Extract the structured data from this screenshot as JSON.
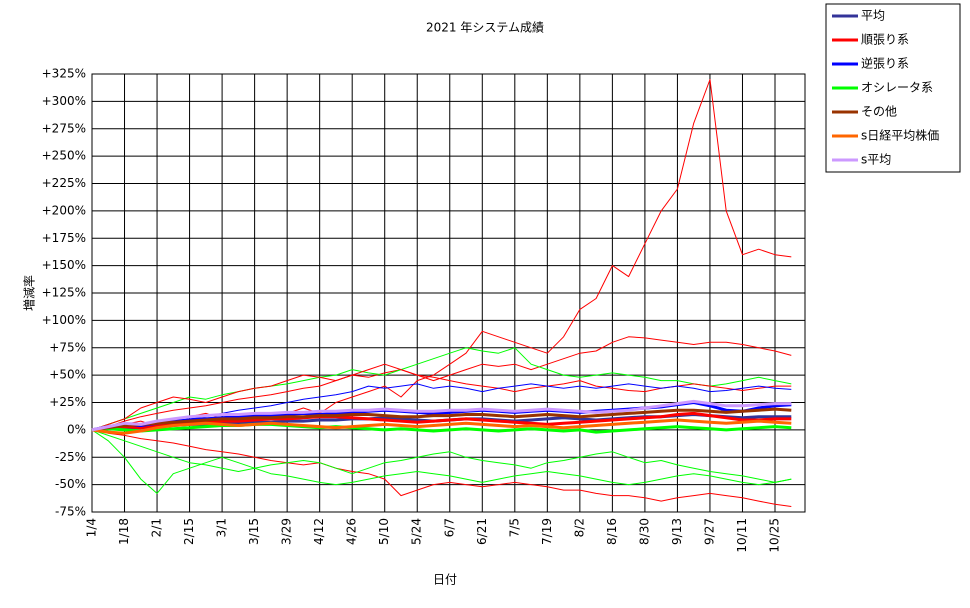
{
  "chart_data": {
    "type": "line",
    "title": "2021 年システム成績",
    "y_label": "増減率",
    "x_label": "日付",
    "grid": true,
    "legend": "right",
    "categories": [
      "1/4",
      null,
      "1/18",
      null,
      "2/1",
      null,
      "2/15",
      null,
      "3/1",
      null,
      "3/15",
      null,
      "3/29",
      null,
      "4/12",
      null,
      "4/26",
      null,
      "5/10",
      null,
      "5/24",
      null,
      "6/7",
      null,
      "6/21",
      null,
      "7/5",
      null,
      "7/19",
      null,
      "8/2",
      null,
      "8/16",
      null,
      "8/30",
      null,
      "9/13",
      null,
      "9/27",
      null,
      "10/11",
      null,
      "10/25",
      null
    ],
    "ylim": [
      -75,
      325
    ],
    "yticks": [
      {
        "value": -75,
        "label": "-75%"
      },
      {
        "value": -50,
        "label": "-50%"
      },
      {
        "value": -25,
        "label": "-25%"
      },
      {
        "value": 0,
        "label": "0%"
      },
      {
        "value": 25,
        "label": "+25%"
      },
      {
        "value": 50,
        "label": "+50%"
      },
      {
        "value": 75,
        "label": "+75%"
      },
      {
        "value": 100,
        "label": "+100%"
      },
      {
        "value": 125,
        "label": "+125%"
      },
      {
        "value": 150,
        "label": "+150%"
      },
      {
        "value": 175,
        "label": "+175%"
      },
      {
        "value": 200,
        "label": "+200%"
      },
      {
        "value": 225,
        "label": "+225%"
      },
      {
        "value": 250,
        "label": "+250%"
      },
      {
        "value": 275,
        "label": "+275%"
      },
      {
        "value": 300,
        "label": "+300%"
      },
      {
        "value": 325,
        "label": "+325%"
      }
    ],
    "series": [
      {
        "color": "#ff0000",
        "width": 1,
        "values": [
          0,
          2,
          5,
          8,
          3,
          10,
          12,
          15,
          10,
          12,
          8,
          10,
          15,
          20,
          15,
          25,
          30,
          35,
          40,
          30,
          45,
          50,
          60,
          70,
          90,
          85,
          80,
          75,
          70,
          85,
          110,
          120,
          150,
          140,
          170,
          200,
          220,
          280,
          320,
          200,
          160,
          165,
          160,
          158
        ]
      },
      {
        "color": "#ff0000",
        "width": 1,
        "values": [
          0,
          3,
          8,
          12,
          15,
          18,
          20,
          22,
          25,
          28,
          30,
          32,
          35,
          38,
          40,
          45,
          50,
          48,
          52,
          55,
          50,
          45,
          50,
          55,
          60,
          58,
          60,
          55,
          60,
          65,
          70,
          72,
          80,
          85,
          84,
          82,
          80,
          78,
          80,
          80,
          78,
          75,
          72,
          68
        ]
      },
      {
        "color": "#ff0000",
        "width": 1,
        "values": [
          0,
          -3,
          -5,
          -8,
          -10,
          -12,
          -15,
          -18,
          -20,
          -22,
          -25,
          -28,
          -30,
          -32,
          -30,
          -35,
          -38,
          -40,
          -45,
          -60,
          -55,
          -50,
          -48,
          -50,
          -52,
          -50,
          -48,
          -50,
          -52,
          -55,
          -55,
          -58,
          -60,
          -60,
          -62,
          -65,
          -62,
          -60,
          -58,
          -60,
          -62,
          -65,
          -68,
          -70
        ]
      },
      {
        "color": "#00ff00",
        "width": 1,
        "values": [
          0,
          -10,
          -25,
          -45,
          -58,
          -40,
          -35,
          -30,
          -25,
          -30,
          -35,
          -32,
          -30,
          -28,
          -30,
          -35,
          -40,
          -35,
          -30,
          -28,
          -25,
          -22,
          -20,
          -25,
          -28,
          -30,
          -32,
          -35,
          -30,
          -28,
          -25,
          -22,
          -20,
          -25,
          -30,
          -28,
          -32,
          -35,
          -38,
          -40,
          -42,
          -45,
          -48,
          -45
        ]
      },
      {
        "color": "#00ff00",
        "width": 1,
        "values": [
          0,
          5,
          10,
          15,
          20,
          25,
          30,
          28,
          32,
          35,
          38,
          40,
          42,
          45,
          48,
          50,
          55,
          52,
          50,
          55,
          60,
          65,
          70,
          75,
          72,
          70,
          75,
          60,
          55,
          50,
          48,
          50,
          52,
          50,
          48,
          45,
          45,
          42,
          40,
          42,
          45,
          48,
          45,
          42
        ]
      },
      {
        "color": "#ff0000",
        "width": 1,
        "values": [
          0,
          5,
          10,
          20,
          25,
          30,
          28,
          25,
          30,
          35,
          38,
          40,
          45,
          50,
          48,
          45,
          50,
          55,
          60,
          55,
          50,
          48,
          45,
          42,
          40,
          38,
          35,
          38,
          40,
          42,
          45,
          40,
          38,
          36,
          35,
          38,
          40,
          42,
          40,
          38,
          36,
          38,
          40,
          40
        ]
      },
      {
        "color": "#00ff00",
        "width": 1,
        "values": [
          0,
          -5,
          -10,
          -15,
          -20,
          -25,
          -30,
          -32,
          -35,
          -38,
          -35,
          -40,
          -42,
          -45,
          -48,
          -50,
          -48,
          -45,
          -42,
          -40,
          -38,
          -40,
          -42,
          -45,
          -48,
          -45,
          -42,
          -40,
          -38,
          -40,
          -42,
          -45,
          -48,
          -50,
          -48,
          -45,
          -42,
          -40,
          -42,
          -45,
          -48,
          -50,
          -48,
          -45
        ]
      },
      {
        "color": "#0000ff",
        "width": 1,
        "values": [
          0,
          2,
          4,
          5,
          6,
          8,
          10,
          12,
          15,
          18,
          20,
          22,
          25,
          28,
          30,
          32,
          35,
          40,
          38,
          40,
          42,
          38,
          40,
          38,
          35,
          38,
          40,
          42,
          40,
          38,
          40,
          38,
          40,
          42,
          40,
          38,
          40,
          38,
          35,
          36,
          38,
          40,
          38,
          37
        ]
      },
      {
        "name": "平均",
        "color": "#333399",
        "width": 3,
        "values": [
          0,
          1,
          2,
          2,
          3,
          4,
          5,
          5,
          6,
          6,
          7,
          7,
          8,
          8,
          9,
          9,
          10,
          10,
          11,
          10,
          9,
          8,
          9,
          10,
          10,
          9,
          8,
          9,
          10,
          11,
          10,
          9,
          10,
          11,
          12,
          12,
          13,
          14,
          13,
          12,
          11,
          12,
          12,
          12
        ]
      },
      {
        "name": "順張り系",
        "color": "#ff0000",
        "width": 3,
        "values": [
          0,
          2,
          3,
          2,
          4,
          5,
          6,
          7,
          8,
          8,
          9,
          10,
          10,
          11,
          12,
          12,
          11,
          10,
          9,
          8,
          7,
          8,
          9,
          10,
          9,
          8,
          7,
          6,
          5,
          6,
          7,
          8,
          9,
          10,
          11,
          12,
          14,
          15,
          13,
          11,
          9,
          9,
          10,
          10
        ]
      },
      {
        "name": "逆張り系",
        "color": "#0000ff",
        "width": 3,
        "values": [
          0,
          3,
          5,
          4,
          6,
          8,
          9,
          10,
          11,
          12,
          13,
          13,
          14,
          15,
          14,
          15,
          16,
          17,
          18,
          17,
          16,
          15,
          16,
          17,
          18,
          17,
          16,
          17,
          18,
          17,
          16,
          17,
          18,
          19,
          20,
          21,
          23,
          25,
          22,
          18,
          17,
          20,
          22,
          23
        ]
      },
      {
        "name": "オシレータ系",
        "color": "#00ff00",
        "width": 3,
        "values": [
          0,
          1,
          0,
          -1,
          0,
          1,
          2,
          3,
          4,
          4,
          5,
          5,
          4,
          3,
          2,
          3,
          2,
          1,
          0,
          1,
          0,
          -1,
          0,
          1,
          0,
          -1,
          0,
          1,
          0,
          -1,
          0,
          -2,
          -1,
          0,
          1,
          2,
          3,
          2,
          1,
          0,
          1,
          2,
          3,
          2
        ]
      },
      {
        "name": "その他",
        "color": "#993300",
        "width": 3,
        "values": [
          0,
          2,
          4,
          5,
          6,
          7,
          8,
          9,
          10,
          10,
          11,
          11,
          12,
          12,
          13,
          13,
          14,
          14,
          13,
          12,
          12,
          13,
          13,
          14,
          14,
          13,
          12,
          13,
          14,
          13,
          12,
          13,
          14,
          15,
          16,
          17,
          18,
          18,
          17,
          16,
          17,
          18,
          19,
          18
        ]
      },
      {
        "name": "s日経平均株価",
        "color": "#ff6600",
        "width": 3,
        "values": [
          0,
          -2,
          -3,
          -1,
          2,
          4,
          5,
          6,
          5,
          4,
          5,
          6,
          5,
          4,
          3,
          2,
          3,
          4,
          5,
          4,
          3,
          4,
          5,
          6,
          5,
          4,
          3,
          4,
          3,
          2,
          3,
          4,
          5,
          6,
          7,
          8,
          9,
          8,
          7,
          6,
          7,
          8,
          7,
          6
        ]
      },
      {
        "name": "s平均",
        "color": "#cc99ff",
        "width": 3,
        "values": [
          0,
          3,
          6,
          5,
          8,
          10,
          12,
          13,
          14,
          14,
          15,
          15,
          16,
          16,
          17,
          17,
          18,
          18,
          19,
          18,
          17,
          17,
          18,
          18,
          19,
          18,
          17,
          18,
          19,
          18,
          17,
          16,
          17,
          18,
          20,
          22,
          24,
          26,
          24,
          22,
          22,
          23,
          24,
          24
        ]
      }
    ]
  }
}
